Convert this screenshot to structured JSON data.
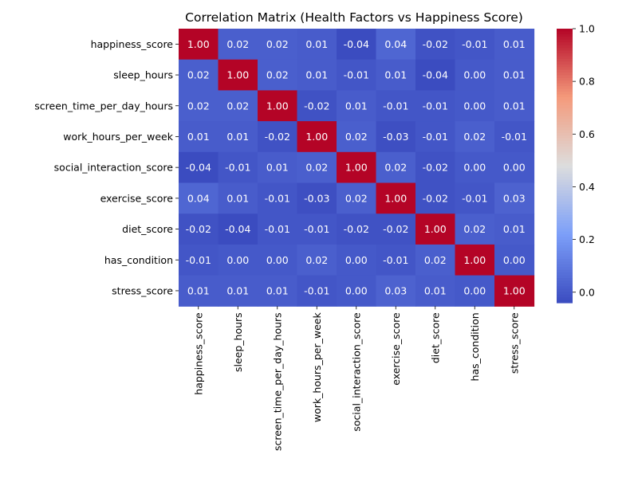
{
  "chart_data": {
    "type": "heatmap",
    "title": "Correlation Matrix (Health Factors vs Happiness Score)",
    "xlabel": "",
    "ylabel": "",
    "labels": [
      "happiness_score",
      "sleep_hours",
      "screen_time_per_day_hours",
      "work_hours_per_week",
      "social_interaction_score",
      "exercise_score",
      "diet_score",
      "has_condition",
      "stress_score"
    ],
    "values": [
      [
        1.0,
        0.02,
        0.02,
        0.01,
        -0.04,
        0.04,
        -0.02,
        -0.01,
        0.01
      ],
      [
        0.02,
        1.0,
        0.02,
        0.01,
        -0.01,
        0.01,
        -0.04,
        -0.0,
        0.01
      ],
      [
        0.02,
        0.02,
        1.0,
        -0.02,
        0.01,
        -0.01,
        -0.01,
        0.0,
        0.01
      ],
      [
        0.01,
        0.01,
        -0.02,
        1.0,
        0.02,
        -0.03,
        -0.01,
        0.02,
        -0.01
      ],
      [
        -0.04,
        -0.01,
        0.01,
        0.02,
        1.0,
        0.02,
        -0.02,
        0.0,
        -0.0
      ],
      [
        0.04,
        0.01,
        -0.01,
        -0.03,
        0.02,
        1.0,
        -0.02,
        -0.01,
        0.03
      ],
      [
        -0.02,
        -0.04,
        -0.01,
        -0.01,
        -0.02,
        -0.02,
        1.0,
        0.02,
        0.01
      ],
      [
        -0.01,
        -0.0,
        0.0,
        0.02,
        0.0,
        -0.01,
        0.02,
        1.0,
        0.0
      ],
      [
        0.01,
        0.01,
        0.01,
        -0.01,
        -0.0,
        0.03,
        0.01,
        0.0,
        1.0
      ]
    ],
    "annotation_format": "2 decimals",
    "colormap": "coolwarm",
    "color_range": [
      -0.04,
      1.0
    ],
    "colorbar": {
      "position": "right",
      "ticks": [
        "0.0",
        "0.2",
        "0.4",
        "0.6",
        "0.8",
        "1.0"
      ]
    },
    "grid": false
  }
}
